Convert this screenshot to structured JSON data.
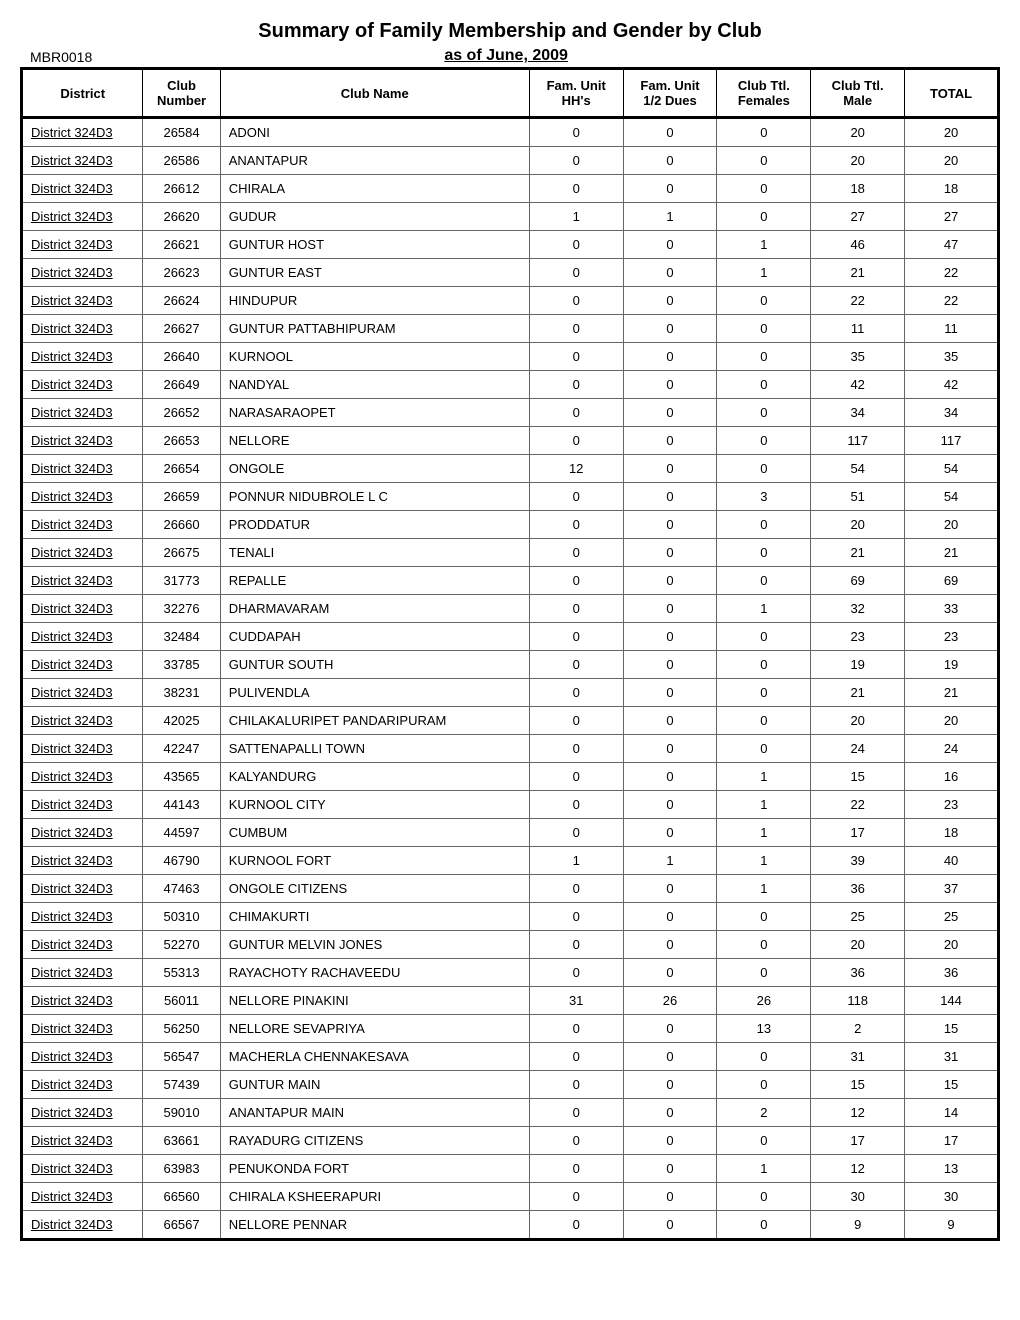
{
  "title": "Summary of Family Membership and Gender by Club",
  "subtitle": "as of June, 2009",
  "report_id": "MBR0018",
  "headers": {
    "district": "District",
    "club_number": "Club\nNumber",
    "club_name": "Club Name",
    "fam_unit_hh": "Fam. Unit\nHH's",
    "fam_unit_half": "Fam. Unit\n1/2 Dues",
    "club_females": "Club Ttl.\nFemales",
    "club_males": "Club Ttl.\nMale",
    "total": "TOTAL"
  },
  "rows": [
    {
      "district": "District 324D3",
      "number": "26584",
      "name": "ADONI",
      "hh": "0",
      "half": "0",
      "females": "0",
      "males": "20",
      "total": "20"
    },
    {
      "district": "District 324D3",
      "number": "26586",
      "name": "ANANTAPUR",
      "hh": "0",
      "half": "0",
      "females": "0",
      "males": "20",
      "total": "20"
    },
    {
      "district": "District 324D3",
      "number": "26612",
      "name": "CHIRALA",
      "hh": "0",
      "half": "0",
      "females": "0",
      "males": "18",
      "total": "18"
    },
    {
      "district": "District 324D3",
      "number": "26620",
      "name": "GUDUR",
      "hh": "1",
      "half": "1",
      "females": "0",
      "males": "27",
      "total": "27"
    },
    {
      "district": "District 324D3",
      "number": "26621",
      "name": "GUNTUR HOST",
      "hh": "0",
      "half": "0",
      "females": "1",
      "males": "46",
      "total": "47"
    },
    {
      "district": "District 324D3",
      "number": "26623",
      "name": "GUNTUR EAST",
      "hh": "0",
      "half": "0",
      "females": "1",
      "males": "21",
      "total": "22"
    },
    {
      "district": "District 324D3",
      "number": "26624",
      "name": "HINDUPUR",
      "hh": "0",
      "half": "0",
      "females": "0",
      "males": "22",
      "total": "22"
    },
    {
      "district": "District 324D3",
      "number": "26627",
      "name": "GUNTUR PATTABHIPURAM",
      "hh": "0",
      "half": "0",
      "females": "0",
      "males": "11",
      "total": "11"
    },
    {
      "district": "District 324D3",
      "number": "26640",
      "name": "KURNOOL",
      "hh": "0",
      "half": "0",
      "females": "0",
      "males": "35",
      "total": "35"
    },
    {
      "district": "District 324D3",
      "number": "26649",
      "name": "NANDYAL",
      "hh": "0",
      "half": "0",
      "females": "0",
      "males": "42",
      "total": "42"
    },
    {
      "district": "District 324D3",
      "number": "26652",
      "name": "NARASARAOPET",
      "hh": "0",
      "half": "0",
      "females": "0",
      "males": "34",
      "total": "34"
    },
    {
      "district": "District 324D3",
      "number": "26653",
      "name": "NELLORE",
      "hh": "0",
      "half": "0",
      "females": "0",
      "males": "117",
      "total": "117"
    },
    {
      "district": "District 324D3",
      "number": "26654",
      "name": "ONGOLE",
      "hh": "12",
      "half": "0",
      "females": "0",
      "males": "54",
      "total": "54"
    },
    {
      "district": "District 324D3",
      "number": "26659",
      "name": "PONNUR NIDUBROLE L C",
      "hh": "0",
      "half": "0",
      "females": "3",
      "males": "51",
      "total": "54"
    },
    {
      "district": "District 324D3",
      "number": "26660",
      "name": "PRODDATUR",
      "hh": "0",
      "half": "0",
      "females": "0",
      "males": "20",
      "total": "20"
    },
    {
      "district": "District 324D3",
      "number": "26675",
      "name": "TENALI",
      "hh": "0",
      "half": "0",
      "females": "0",
      "males": "21",
      "total": "21"
    },
    {
      "district": "District 324D3",
      "number": "31773",
      "name": "REPALLE",
      "hh": "0",
      "half": "0",
      "females": "0",
      "males": "69",
      "total": "69"
    },
    {
      "district": "District 324D3",
      "number": "32276",
      "name": "DHARMAVARAM",
      "hh": "0",
      "half": "0",
      "females": "1",
      "males": "32",
      "total": "33"
    },
    {
      "district": "District 324D3",
      "number": "32484",
      "name": "CUDDAPAH",
      "hh": "0",
      "half": "0",
      "females": "0",
      "males": "23",
      "total": "23"
    },
    {
      "district": "District 324D3",
      "number": "33785",
      "name": "GUNTUR SOUTH",
      "hh": "0",
      "half": "0",
      "females": "0",
      "males": "19",
      "total": "19"
    },
    {
      "district": "District 324D3",
      "number": "38231",
      "name": "PULIVENDLA",
      "hh": "0",
      "half": "0",
      "females": "0",
      "males": "21",
      "total": "21"
    },
    {
      "district": "District 324D3",
      "number": "42025",
      "name": "CHILAKALURIPET PANDARIPURAM",
      "hh": "0",
      "half": "0",
      "females": "0",
      "males": "20",
      "total": "20"
    },
    {
      "district": "District 324D3",
      "number": "42247",
      "name": "SATTENAPALLI TOWN",
      "hh": "0",
      "half": "0",
      "females": "0",
      "males": "24",
      "total": "24"
    },
    {
      "district": "District 324D3",
      "number": "43565",
      "name": "KALYANDURG",
      "hh": "0",
      "half": "0",
      "females": "1",
      "males": "15",
      "total": "16"
    },
    {
      "district": "District 324D3",
      "number": "44143",
      "name": "KURNOOL CITY",
      "hh": "0",
      "half": "0",
      "females": "1",
      "males": "22",
      "total": "23"
    },
    {
      "district": "District 324D3",
      "number": "44597",
      "name": "CUMBUM",
      "hh": "0",
      "half": "0",
      "females": "1",
      "males": "17",
      "total": "18"
    },
    {
      "district": "District 324D3",
      "number": "46790",
      "name": "KURNOOL FORT",
      "hh": "1",
      "half": "1",
      "females": "1",
      "males": "39",
      "total": "40"
    },
    {
      "district": "District 324D3",
      "number": "47463",
      "name": "ONGOLE CITIZENS",
      "hh": "0",
      "half": "0",
      "females": "1",
      "males": "36",
      "total": "37"
    },
    {
      "district": "District 324D3",
      "number": "50310",
      "name": "CHIMAKURTI",
      "hh": "0",
      "half": "0",
      "females": "0",
      "males": "25",
      "total": "25"
    },
    {
      "district": "District 324D3",
      "number": "52270",
      "name": "GUNTUR MELVIN JONES",
      "hh": "0",
      "half": "0",
      "females": "0",
      "males": "20",
      "total": "20"
    },
    {
      "district": "District 324D3",
      "number": "55313",
      "name": "RAYACHOTY RACHAVEEDU",
      "hh": "0",
      "half": "0",
      "females": "0",
      "males": "36",
      "total": "36"
    },
    {
      "district": "District 324D3",
      "number": "56011",
      "name": "NELLORE PINAKINI",
      "hh": "31",
      "half": "26",
      "females": "26",
      "males": "118",
      "total": "144"
    },
    {
      "district": "District 324D3",
      "number": "56250",
      "name": "NELLORE SEVAPRIYA",
      "hh": "0",
      "half": "0",
      "females": "13",
      "males": "2",
      "total": "15"
    },
    {
      "district": "District 324D3",
      "number": "56547",
      "name": "MACHERLA CHENNAKESAVA",
      "hh": "0",
      "half": "0",
      "females": "0",
      "males": "31",
      "total": "31"
    },
    {
      "district": "District 324D3",
      "number": "57439",
      "name": "GUNTUR MAIN",
      "hh": "0",
      "half": "0",
      "females": "0",
      "males": "15",
      "total": "15"
    },
    {
      "district": "District 324D3",
      "number": "59010",
      "name": "ANANTAPUR MAIN",
      "hh": "0",
      "half": "0",
      "females": "2",
      "males": "12",
      "total": "14"
    },
    {
      "district": "District 324D3",
      "number": "63661",
      "name": "RAYADURG CITIZENS",
      "hh": "0",
      "half": "0",
      "females": "0",
      "males": "17",
      "total": "17"
    },
    {
      "district": "District 324D3",
      "number": "63983",
      "name": "PENUKONDA FORT",
      "hh": "0",
      "half": "0",
      "females": "1",
      "males": "12",
      "total": "13"
    },
    {
      "district": "District 324D3",
      "number": "66560",
      "name": "CHIRALA KSHEERAPURI",
      "hh": "0",
      "half": "0",
      "females": "0",
      "males": "30",
      "total": "30"
    },
    {
      "district": "District 324D3",
      "number": "66567",
      "name": "NELLORE PENNAR",
      "hh": "0",
      "half": "0",
      "females": "0",
      "males": "9",
      "total": "9"
    }
  ]
}
